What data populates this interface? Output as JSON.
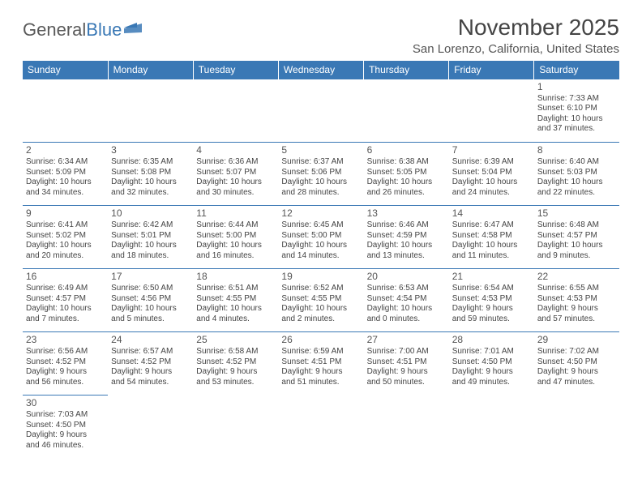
{
  "brand": {
    "text1": "General",
    "text2": "Blue"
  },
  "title": "November 2025",
  "location": "San Lorenzo, California, United States",
  "colors": {
    "header_bg": "#3a78b5",
    "header_fg": "#ffffff",
    "border": "#3a78b5",
    "text": "#444444",
    "logo_gray": "#5a5a5a",
    "logo_blue": "#3a78b5"
  },
  "weekdays": [
    "Sunday",
    "Monday",
    "Tuesday",
    "Wednesday",
    "Thursday",
    "Friday",
    "Saturday"
  ],
  "weeks": [
    [
      null,
      null,
      null,
      null,
      null,
      null,
      {
        "n": "1",
        "sr": "Sunrise: 7:33 AM",
        "ss": "Sunset: 6:10 PM",
        "dl1": "Daylight: 10 hours",
        "dl2": "and 37 minutes."
      }
    ],
    [
      {
        "n": "2",
        "sr": "Sunrise: 6:34 AM",
        "ss": "Sunset: 5:09 PM",
        "dl1": "Daylight: 10 hours",
        "dl2": "and 34 minutes."
      },
      {
        "n": "3",
        "sr": "Sunrise: 6:35 AM",
        "ss": "Sunset: 5:08 PM",
        "dl1": "Daylight: 10 hours",
        "dl2": "and 32 minutes."
      },
      {
        "n": "4",
        "sr": "Sunrise: 6:36 AM",
        "ss": "Sunset: 5:07 PM",
        "dl1": "Daylight: 10 hours",
        "dl2": "and 30 minutes."
      },
      {
        "n": "5",
        "sr": "Sunrise: 6:37 AM",
        "ss": "Sunset: 5:06 PM",
        "dl1": "Daylight: 10 hours",
        "dl2": "and 28 minutes."
      },
      {
        "n": "6",
        "sr": "Sunrise: 6:38 AM",
        "ss": "Sunset: 5:05 PM",
        "dl1": "Daylight: 10 hours",
        "dl2": "and 26 minutes."
      },
      {
        "n": "7",
        "sr": "Sunrise: 6:39 AM",
        "ss": "Sunset: 5:04 PM",
        "dl1": "Daylight: 10 hours",
        "dl2": "and 24 minutes."
      },
      {
        "n": "8",
        "sr": "Sunrise: 6:40 AM",
        "ss": "Sunset: 5:03 PM",
        "dl1": "Daylight: 10 hours",
        "dl2": "and 22 minutes."
      }
    ],
    [
      {
        "n": "9",
        "sr": "Sunrise: 6:41 AM",
        "ss": "Sunset: 5:02 PM",
        "dl1": "Daylight: 10 hours",
        "dl2": "and 20 minutes."
      },
      {
        "n": "10",
        "sr": "Sunrise: 6:42 AM",
        "ss": "Sunset: 5:01 PM",
        "dl1": "Daylight: 10 hours",
        "dl2": "and 18 minutes."
      },
      {
        "n": "11",
        "sr": "Sunrise: 6:44 AM",
        "ss": "Sunset: 5:00 PM",
        "dl1": "Daylight: 10 hours",
        "dl2": "and 16 minutes."
      },
      {
        "n": "12",
        "sr": "Sunrise: 6:45 AM",
        "ss": "Sunset: 5:00 PM",
        "dl1": "Daylight: 10 hours",
        "dl2": "and 14 minutes."
      },
      {
        "n": "13",
        "sr": "Sunrise: 6:46 AM",
        "ss": "Sunset: 4:59 PM",
        "dl1": "Daylight: 10 hours",
        "dl2": "and 13 minutes."
      },
      {
        "n": "14",
        "sr": "Sunrise: 6:47 AM",
        "ss": "Sunset: 4:58 PM",
        "dl1": "Daylight: 10 hours",
        "dl2": "and 11 minutes."
      },
      {
        "n": "15",
        "sr": "Sunrise: 6:48 AM",
        "ss": "Sunset: 4:57 PM",
        "dl1": "Daylight: 10 hours",
        "dl2": "and 9 minutes."
      }
    ],
    [
      {
        "n": "16",
        "sr": "Sunrise: 6:49 AM",
        "ss": "Sunset: 4:57 PM",
        "dl1": "Daylight: 10 hours",
        "dl2": "and 7 minutes."
      },
      {
        "n": "17",
        "sr": "Sunrise: 6:50 AM",
        "ss": "Sunset: 4:56 PM",
        "dl1": "Daylight: 10 hours",
        "dl2": "and 5 minutes."
      },
      {
        "n": "18",
        "sr": "Sunrise: 6:51 AM",
        "ss": "Sunset: 4:55 PM",
        "dl1": "Daylight: 10 hours",
        "dl2": "and 4 minutes."
      },
      {
        "n": "19",
        "sr": "Sunrise: 6:52 AM",
        "ss": "Sunset: 4:55 PM",
        "dl1": "Daylight: 10 hours",
        "dl2": "and 2 minutes."
      },
      {
        "n": "20",
        "sr": "Sunrise: 6:53 AM",
        "ss": "Sunset: 4:54 PM",
        "dl1": "Daylight: 10 hours",
        "dl2": "and 0 minutes."
      },
      {
        "n": "21",
        "sr": "Sunrise: 6:54 AM",
        "ss": "Sunset: 4:53 PM",
        "dl1": "Daylight: 9 hours",
        "dl2": "and 59 minutes."
      },
      {
        "n": "22",
        "sr": "Sunrise: 6:55 AM",
        "ss": "Sunset: 4:53 PM",
        "dl1": "Daylight: 9 hours",
        "dl2": "and 57 minutes."
      }
    ],
    [
      {
        "n": "23",
        "sr": "Sunrise: 6:56 AM",
        "ss": "Sunset: 4:52 PM",
        "dl1": "Daylight: 9 hours",
        "dl2": "and 56 minutes."
      },
      {
        "n": "24",
        "sr": "Sunrise: 6:57 AM",
        "ss": "Sunset: 4:52 PM",
        "dl1": "Daylight: 9 hours",
        "dl2": "and 54 minutes."
      },
      {
        "n": "25",
        "sr": "Sunrise: 6:58 AM",
        "ss": "Sunset: 4:52 PM",
        "dl1": "Daylight: 9 hours",
        "dl2": "and 53 minutes."
      },
      {
        "n": "26",
        "sr": "Sunrise: 6:59 AM",
        "ss": "Sunset: 4:51 PM",
        "dl1": "Daylight: 9 hours",
        "dl2": "and 51 minutes."
      },
      {
        "n": "27",
        "sr": "Sunrise: 7:00 AM",
        "ss": "Sunset: 4:51 PM",
        "dl1": "Daylight: 9 hours",
        "dl2": "and 50 minutes."
      },
      {
        "n": "28",
        "sr": "Sunrise: 7:01 AM",
        "ss": "Sunset: 4:50 PM",
        "dl1": "Daylight: 9 hours",
        "dl2": "and 49 minutes."
      },
      {
        "n": "29",
        "sr": "Sunrise: 7:02 AM",
        "ss": "Sunset: 4:50 PM",
        "dl1": "Daylight: 9 hours",
        "dl2": "and 47 minutes."
      }
    ],
    [
      {
        "n": "30",
        "sr": "Sunrise: 7:03 AM",
        "ss": "Sunset: 4:50 PM",
        "dl1": "Daylight: 9 hours",
        "dl2": "and 46 minutes."
      },
      null,
      null,
      null,
      null,
      null,
      null
    ]
  ]
}
